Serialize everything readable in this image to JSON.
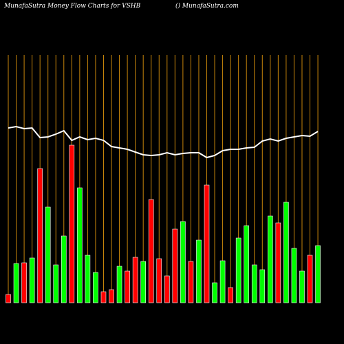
{
  "chart_data": {
    "type": "bar",
    "title": "MunafaSutra  Money Flow  Charts for VSHB",
    "subtitle": "() MunafaSutra.com",
    "ylim": [
      0,
      360
    ],
    "categories": [
      null,
      null,
      null,
      null,
      null,
      null,
      null,
      null,
      null,
      null,
      null,
      null,
      null,
      null,
      null,
      null,
      null,
      null,
      null,
      null,
      null,
      null,
      null,
      null,
      null,
      null,
      null,
      null,
      null,
      null,
      null,
      null,
      null,
      null,
      null,
      null,
      null,
      null,
      null,
      null
    ],
    "series": [
      {
        "type": "bar",
        "values": [
          12,
          57,
          58,
          65,
          195,
          139,
          55,
          97,
          229,
          167,
          69,
          44,
          16,
          19,
          53,
          46,
          66,
          60,
          150,
          64,
          39,
          107,
          118,
          60,
          91,
          171,
          29,
          61,
          22,
          94,
          112,
          55,
          48,
          126,
          116,
          146,
          79,
          46,
          69,
          83
        ],
        "colors": [
          "#ff0000",
          "#00ff00",
          "#ff0000",
          "#00ff00",
          "#ff0000",
          "#00ff00",
          "#00ff00",
          "#00ff00",
          "#ff0000",
          "#00ff00",
          "#00ff00",
          "#00ff00",
          "#ff0000",
          "#ff0000",
          "#00ff00",
          "#ff0000",
          "#ff0000",
          "#00ff00",
          "#ff0000",
          "#ff0000",
          "#ff0000",
          "#ff0000",
          "#00ff00",
          "#ff0000",
          "#00ff00",
          "#ff0000",
          "#00ff00",
          "#00ff00",
          "#ff0000",
          "#00ff00",
          "#00ff00",
          "#00ff00",
          "#00ff00",
          "#00ff00",
          "#ff0000",
          "#00ff00",
          "#00ff00",
          "#00ff00",
          "#ff0000",
          "#00ff00"
        ]
      },
      {
        "type": "line",
        "color": "#ffffff",
        "values": [
          254,
          256,
          253,
          254,
          240,
          241,
          245,
          250,
          236,
          241,
          237,
          239,
          236,
          227,
          225,
          223,
          219,
          215,
          214,
          215,
          218,
          215,
          217,
          218,
          218,
          211,
          214,
          221,
          223,
          223,
          225,
          226,
          235,
          238,
          235,
          239,
          241,
          243,
          242,
          249
        ]
      }
    ],
    "grid_color": "#c8860b"
  }
}
